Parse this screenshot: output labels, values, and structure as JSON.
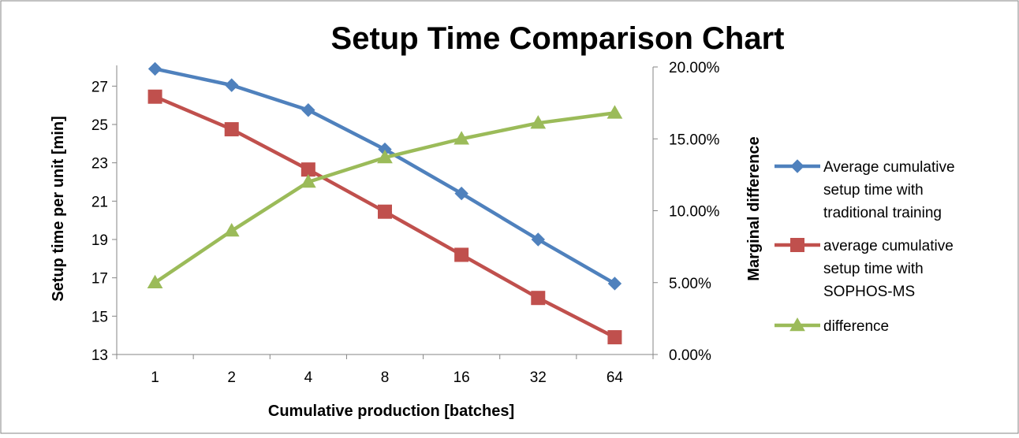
{
  "chart_data": {
    "type": "line",
    "title": "Setup Time Comparison Chart",
    "xlabel": "Cumulative production [batches]",
    "ylabel": "Setup time per unit [min]",
    "y2label": "Marginal difference",
    "categories": [
      "1",
      "2",
      "4",
      "8",
      "16",
      "32",
      "64"
    ],
    "ylim": [
      13,
      28
    ],
    "yticks": [
      "13",
      "15",
      "17",
      "19",
      "21",
      "23",
      "25",
      "27"
    ],
    "y2lim": [
      0,
      0.2
    ],
    "y2ticks": [
      "0.00%",
      "5.00%",
      "10.00%",
      "15.00%",
      "20.00%"
    ],
    "grid": false,
    "legend_position": "right",
    "series": [
      {
        "name": "Average cumulative setup time with traditional training",
        "legend_lines": [
          "Average cumulative",
          "setup time with",
          "traditional training"
        ],
        "axis": "left",
        "marker": "diamond",
        "color": "#4F81BD",
        "values": [
          27.9,
          27.05,
          25.75,
          23.7,
          21.4,
          19.0,
          16.7
        ]
      },
      {
        "name": "average cumulative setup time with SOPHOS-MS",
        "legend_lines": [
          "average cumulative",
          "setup time with",
          "SOPHOS-MS"
        ],
        "axis": "left",
        "marker": "square",
        "color": "#C0504D",
        "values": [
          26.45,
          24.75,
          22.65,
          20.45,
          18.2,
          15.95,
          13.9
        ]
      },
      {
        "name": "difference",
        "legend_lines": [
          "difference"
        ],
        "axis": "right",
        "marker": "triangle",
        "color": "#9BBB59",
        "values": [
          0.05,
          0.086,
          0.12,
          0.137,
          0.15,
          0.161,
          0.168
        ]
      }
    ]
  }
}
